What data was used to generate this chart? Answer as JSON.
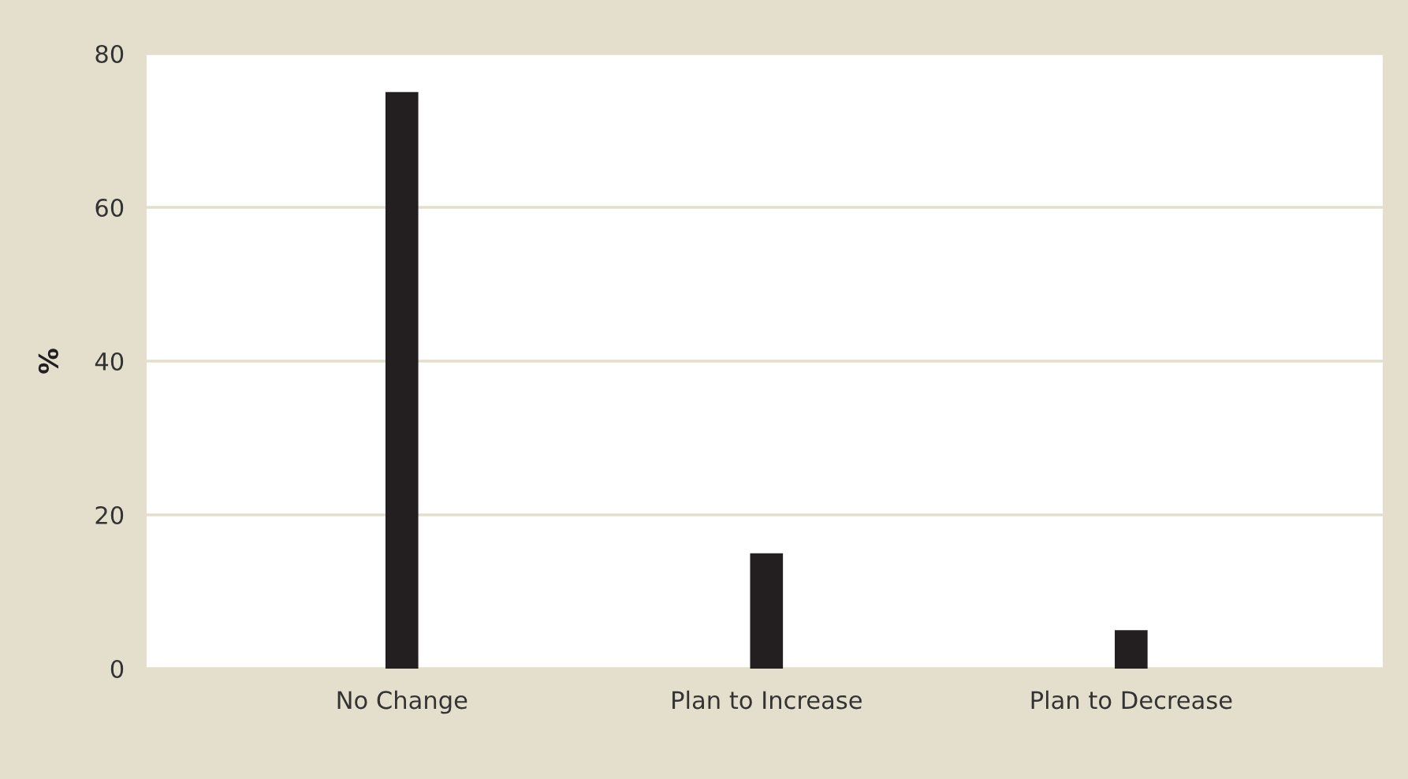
{
  "chart_data": {
    "type": "bar",
    "ylabel": "%",
    "categories": [
      "No Change",
      "Plan to Increase",
      "Plan to Decrease"
    ],
    "values": [
      75,
      15,
      5
    ],
    "color": "#231f20",
    "ylim": [
      0,
      80
    ],
    "yticks": [
      0,
      20,
      40,
      60,
      80
    ],
    "grid": "y"
  }
}
